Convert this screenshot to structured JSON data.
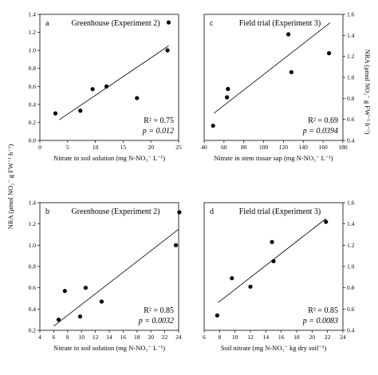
{
  "figure": {
    "ylabel_left": "NRA (μmol NO₂⁻ g FW⁻¹ h⁻¹)",
    "ylabel_right": "NRA (μmol NO₂⁻ g FW⁻¹ h⁻¹)"
  },
  "chart_data": [
    {
      "type": "scatter",
      "panel": "a",
      "title": "Greenhouse (Experiment 2)",
      "xlabel": "Nitrate in soil solution (mg N-NO₃⁻ L⁻¹)",
      "xlim": [
        0,
        25
      ],
      "ylim": [
        0.0,
        1.4
      ],
      "xticks": [
        "0",
        "5",
        "10",
        "15",
        "20",
        "25"
      ],
      "yticks": [
        "0.0",
        "0.2",
        "0.4",
        "0.6",
        "0.8",
        "1.0",
        "1.2",
        "1.4"
      ],
      "points": [
        {
          "x": 2.8,
          "y": 0.3
        },
        {
          "x": 7.3,
          "y": 0.33
        },
        {
          "x": 9.5,
          "y": 0.57
        },
        {
          "x": 12.0,
          "y": 0.6
        },
        {
          "x": 17.5,
          "y": 0.47
        },
        {
          "x": 23.0,
          "y": 1.0
        },
        {
          "x": 23.2,
          "y": 1.31
        }
      ],
      "fit": {
        "x": [
          3.5,
          23.2
        ],
        "y": [
          0.23,
          1.05
        ]
      },
      "r2": "R² = 0.75",
      "p": "p = 0.012",
      "grid": false
    },
    {
      "type": "scatter",
      "panel": "c",
      "title": "Field trial (Experiment 3)",
      "xlabel": "Nitrate in stem tissue sap (mg N-NO₃⁻ L⁻¹)",
      "xlim": [
        40,
        180
      ],
      "ylim": [
        0.4,
        1.6
      ],
      "xticks": [
        "40",
        "60",
        "80",
        "100",
        "120",
        "140",
        "160",
        "180"
      ],
      "yticks": [
        "0.4",
        "0.6",
        "0.8",
        "1.0",
        "1.2",
        "1.4",
        "1.6"
      ],
      "points": [
        {
          "x": 49,
          "y": 0.54
        },
        {
          "x": 63,
          "y": 0.81
        },
        {
          "x": 64,
          "y": 0.89
        },
        {
          "x": 125,
          "y": 1.41
        },
        {
          "x": 128,
          "y": 1.05
        },
        {
          "x": 166,
          "y": 1.23
        }
      ],
      "fit": {
        "x": [
          50,
          167
        ],
        "y": [
          0.66,
          1.52
        ]
      },
      "r2": "R² = 0.69",
      "p": "p = 0.0394",
      "grid": false
    },
    {
      "type": "scatter",
      "panel": "b",
      "title": "Greenhouse (Experiment 2)",
      "xlabel": "Nitrate in soil solution (mg N-NO₃⁻ L⁻¹)",
      "xlim": [
        4,
        24
      ],
      "ylim": [
        0.2,
        1.4
      ],
      "xticks": [
        "4",
        "6",
        "8",
        "10",
        "12",
        "14",
        "16",
        "18",
        "20",
        "22",
        "24"
      ],
      "yticks": [
        "0.2",
        "0.4",
        "0.6",
        "0.8",
        "1.0",
        "1.2",
        "1.4"
      ],
      "points": [
        {
          "x": 6.7,
          "y": 0.3
        },
        {
          "x": 7.6,
          "y": 0.57
        },
        {
          "x": 9.8,
          "y": 0.33
        },
        {
          "x": 10.6,
          "y": 0.6
        },
        {
          "x": 12.9,
          "y": 0.47
        },
        {
          "x": 23.6,
          "y": 1.0
        },
        {
          "x": 24.1,
          "y": 1.31
        }
      ],
      "fit": {
        "x": [
          6.0,
          24.0
        ],
        "y": [
          0.24,
          1.15
        ]
      },
      "r2": "R² = 0.85",
      "p": "p = 0.0032",
      "grid": false
    },
    {
      "type": "scatter",
      "panel": "d",
      "title": "Field trial (Experiment 3)",
      "xlabel": "Soil nitrate (mg N-NO₃⁻ kg dry soil⁻¹)",
      "xlim": [
        6,
        24
      ],
      "ylim": [
        0.4,
        1.6
      ],
      "xticks": [
        "6",
        "8",
        "10",
        "12",
        "14",
        "16",
        "18",
        "20",
        "22",
        "24"
      ],
      "yticks": [
        "0.4",
        "0.6",
        "0.8",
        "1.0",
        "1.2",
        "1.4",
        "1.6"
      ],
      "points": [
        {
          "x": 7.7,
          "y": 0.54
        },
        {
          "x": 9.6,
          "y": 0.89
        },
        {
          "x": 12.0,
          "y": 0.81
        },
        {
          "x": 14.8,
          "y": 1.23
        },
        {
          "x": 15.0,
          "y": 1.05
        },
        {
          "x": 21.8,
          "y": 1.42
        }
      ],
      "fit": {
        "x": [
          7.8,
          21.8
        ],
        "y": [
          0.66,
          1.45
        ]
      },
      "r2": "R² = 0.85",
      "p": "p = 0.0083",
      "grid": false
    }
  ]
}
